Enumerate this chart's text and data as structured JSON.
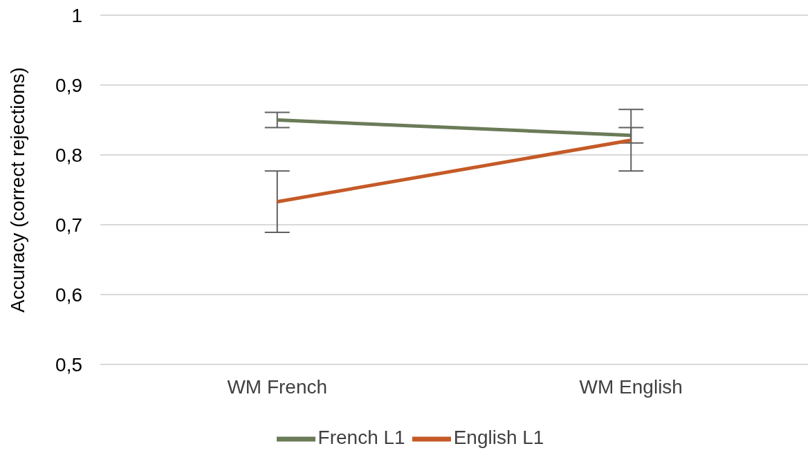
{
  "chart_data": {
    "type": "line",
    "ylabel": "Accuracy (correct rejections)",
    "categories": [
      "WM French",
      "WM English"
    ],
    "series": [
      {
        "name": "French L1",
        "color": "#6b7b58",
        "values": [
          0.85,
          0.828
        ],
        "errors": [
          0.011,
          0.011
        ]
      },
      {
        "name": "English L1",
        "color": "#c55a27",
        "values": [
          0.733,
          0.821
        ],
        "errors": [
          0.044,
          0.044
        ]
      }
    ],
    "ylim": [
      0.5,
      1
    ],
    "yticks": [
      {
        "value": 0.5,
        "label": "0,5"
      },
      {
        "value": 0.6,
        "label": "0,6"
      },
      {
        "value": 0.7,
        "label": "0,7"
      },
      {
        "value": 0.8,
        "label": "0,8"
      },
      {
        "value": 0.9,
        "label": "0,9"
      },
      {
        "value": 1,
        "label": "1"
      }
    ],
    "grid": "y",
    "legend": "bottom",
    "marker": "none",
    "line_style": "solid"
  }
}
